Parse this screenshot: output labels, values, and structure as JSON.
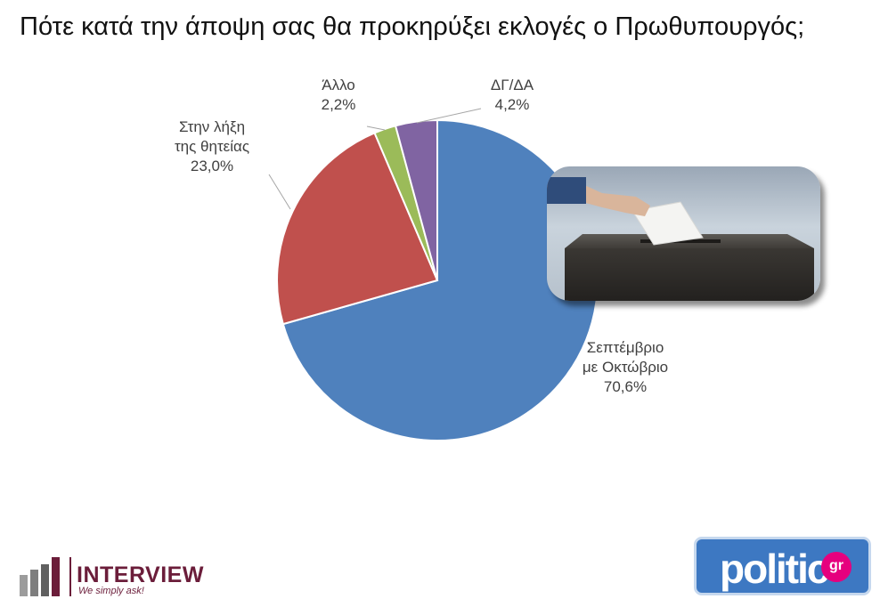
{
  "title": "Πότε κατά την άποψη σας θα προκηρύξει εκλογές ο Πρωθυπουργός;",
  "chart_data": {
    "type": "pie",
    "title": "Πότε κατά την άποψη σας θα προκηρύξει εκλογές ο Πρωθυπουργός;",
    "slices": [
      {
        "label_lines": [
          "Σεπτέμβριο",
          "με Οκτώβριο"
        ],
        "value": 70.6,
        "value_text": "70,6%",
        "color": "#4f81bd"
      },
      {
        "label_lines": [
          "Στην λήξη",
          "της θητείας"
        ],
        "value": 23.0,
        "value_text": "23,0%",
        "color": "#c0504d"
      },
      {
        "label_lines": [
          "Άλλο"
        ],
        "value": 2.2,
        "value_text": "2,2%",
        "color": "#9bbb59"
      },
      {
        "label_lines": [
          "ΔΓ/ΔΑ"
        ],
        "value": 4.2,
        "value_text": "4,2%",
        "color": "#8064a2"
      }
    ],
    "start_angle_deg": 0,
    "direction": "clockwise",
    "legend": "none"
  },
  "logos": {
    "left": {
      "brand": "INTERVIEW",
      "tagline": "We simply ask!",
      "color": "#6b1d3a"
    },
    "right": {
      "word": "politic",
      "badge": "gr",
      "color": "#3d78c2",
      "badge_color": "#e6007e"
    }
  },
  "image": {
    "description_icon": "ballot-box-photo"
  }
}
